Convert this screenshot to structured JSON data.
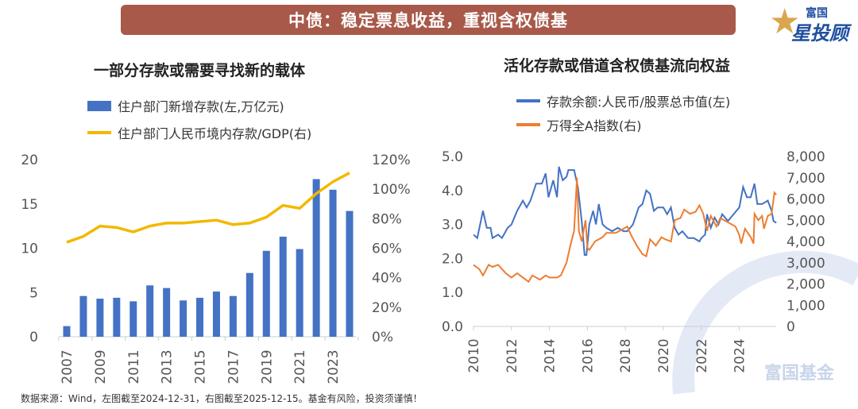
{
  "header": {
    "title": "中债：稳定票息收益，重视含权债基"
  },
  "logo": {
    "top": "富国",
    "bottom": "星投顾"
  },
  "watermark": "富国基金",
  "footer": {
    "source": "数据来源：Wind，左图截至2024-12-31，右图截至2025-12-15。基金有风险，投资须谨慎！"
  },
  "colors": {
    "bar": "#4472c4",
    "gold": "#f2b800",
    "blue": "#4472c4",
    "orange": "#ed7d31",
    "banner": "#a8594a"
  },
  "chart_data": [
    {
      "type": "bar+line",
      "title": "一部分存款或需要寻找新的载体",
      "categories": [
        2007,
        2008,
        2009,
        2010,
        2011,
        2012,
        2013,
        2014,
        2015,
        2016,
        2017,
        2018,
        2019,
        2020,
        2021,
        2022,
        2023,
        2024
      ],
      "x_tick_labels": [
        "2007",
        "2009",
        "2011",
        "2013",
        "2015",
        "2017",
        "2019",
        "2021",
        "2023"
      ],
      "series": [
        {
          "name": "住户部门新增存款(左,万亿元)",
          "type": "bar",
          "axis": "left",
          "values": [
            1.2,
            4.6,
            4.3,
            4.4,
            4.0,
            5.8,
            5.5,
            4.1,
            4.4,
            5.1,
            4.6,
            7.2,
            9.7,
            11.3,
            9.9,
            17.8,
            16.6,
            14.2
          ]
        },
        {
          "name": "住户部门人民币境内存款/GDP(右)",
          "type": "line",
          "axis": "right",
          "values": [
            64,
            68,
            75,
            74,
            71,
            75,
            77,
            77,
            78,
            79,
            76,
            77,
            81,
            89,
            87,
            97,
            105,
            111
          ]
        }
      ],
      "left_axis": {
        "range": [
          0,
          20
        ],
        "ticks": [
          "0",
          "5",
          "10",
          "15",
          "20"
        ]
      },
      "right_axis": {
        "range": [
          0,
          120
        ],
        "ticks": [
          "0%",
          "20%",
          "40%",
          "60%",
          "80%",
          "100%",
          "120%"
        ]
      },
      "legend": "top"
    },
    {
      "type": "line",
      "title": "活化存款或借道含权债基流向权益",
      "series": [
        {
          "name": "存款余额:人民币/股票总市值(左)",
          "axis": "left",
          "points": [
            [
              2010.0,
              2.7
            ],
            [
              2010.2,
              2.6
            ],
            [
              2010.5,
              3.4
            ],
            [
              2010.7,
              2.9
            ],
            [
              2010.9,
              2.9
            ],
            [
              2011.0,
              2.6
            ],
            [
              2011.3,
              2.7
            ],
            [
              2011.5,
              2.6
            ],
            [
              2011.8,
              2.9
            ],
            [
              2012.0,
              3.0
            ],
            [
              2012.3,
              3.4
            ],
            [
              2012.6,
              3.7
            ],
            [
              2012.8,
              3.5
            ],
            [
              2013.0,
              3.7
            ],
            [
              2013.3,
              4.2
            ],
            [
              2013.6,
              4.2
            ],
            [
              2013.8,
              4.5
            ],
            [
              2013.95,
              3.8
            ],
            [
              2014.2,
              4.3
            ],
            [
              2014.4,
              3.8
            ],
            [
              2014.5,
              4.7
            ],
            [
              2014.7,
              4.3
            ],
            [
              2014.9,
              4.4
            ],
            [
              2015.0,
              4.6
            ],
            [
              2015.3,
              4.6
            ],
            [
              2015.5,
              4.1
            ],
            [
              2015.7,
              3.1
            ],
            [
              2015.85,
              2.1
            ],
            [
              2015.95,
              2.1
            ],
            [
              2016.1,
              3.0
            ],
            [
              2016.3,
              3.4
            ],
            [
              2016.45,
              3.0
            ],
            [
              2016.6,
              3.6
            ],
            [
              2016.8,
              3.0
            ],
            [
              2017.0,
              2.9
            ],
            [
              2017.3,
              2.8
            ],
            [
              2017.6,
              2.9
            ],
            [
              2017.9,
              2.8
            ],
            [
              2018.1,
              2.8
            ],
            [
              2018.4,
              3.0
            ],
            [
              2018.7,
              3.5
            ],
            [
              2018.9,
              3.6
            ],
            [
              2019.1,
              4.0
            ],
            [
              2019.3,
              3.9
            ],
            [
              2019.5,
              3.4
            ],
            [
              2019.7,
              3.5
            ],
            [
              2020.0,
              3.5
            ],
            [
              2020.2,
              3.3
            ],
            [
              2020.4,
              3.5
            ],
            [
              2020.6,
              2.9
            ],
            [
              2020.8,
              2.7
            ],
            [
              2021.0,
              2.8
            ],
            [
              2021.3,
              2.6
            ],
            [
              2021.6,
              2.6
            ],
            [
              2021.9,
              2.5
            ],
            [
              2022.0,
              2.6
            ],
            [
              2022.2,
              2.7
            ],
            [
              2022.3,
              3.3
            ],
            [
              2022.5,
              2.9
            ],
            [
              2022.7,
              3.2
            ],
            [
              2022.9,
              3.0
            ],
            [
              2023.1,
              3.3
            ],
            [
              2023.4,
              3.1
            ],
            [
              2023.7,
              3.3
            ],
            [
              2024.0,
              3.5
            ],
            [
              2024.2,
              4.1
            ],
            [
              2024.4,
              3.8
            ],
            [
              2024.6,
              3.8
            ],
            [
              2024.8,
              4.2
            ],
            [
              2024.95,
              3.6
            ],
            [
              2025.2,
              3.6
            ],
            [
              2025.5,
              3.7
            ],
            [
              2025.7,
              3.4
            ],
            [
              2025.8,
              3.1
            ],
            [
              2025.95,
              3.05
            ]
          ]
        },
        {
          "name": "万得全A指数(右)",
          "axis": "right",
          "points": [
            [
              2010.0,
              2900
            ],
            [
              2010.3,
              2700
            ],
            [
              2010.5,
              2400
            ],
            [
              2010.8,
              2900
            ],
            [
              2011.0,
              2800
            ],
            [
              2011.3,
              2900
            ],
            [
              2011.7,
              2500
            ],
            [
              2012.0,
              2300
            ],
            [
              2012.3,
              2500
            ],
            [
              2012.6,
              2300
            ],
            [
              2012.9,
              2100
            ],
            [
              2013.1,
              2400
            ],
            [
              2013.5,
              2200
            ],
            [
              2013.8,
              2400
            ],
            [
              2014.0,
              2300
            ],
            [
              2014.4,
              2300
            ],
            [
              2014.6,
              2400
            ],
            [
              2014.9,
              3000
            ],
            [
              2015.1,
              3800
            ],
            [
              2015.3,
              4500
            ],
            [
              2015.45,
              7000
            ],
            [
              2015.55,
              4500
            ],
            [
              2015.7,
              4000
            ],
            [
              2015.9,
              5000
            ],
            [
              2016.0,
              3700
            ],
            [
              2016.1,
              3600
            ],
            [
              2016.4,
              4000
            ],
            [
              2016.8,
              4200
            ],
            [
              2017.0,
              4400
            ],
            [
              2017.5,
              4400
            ],
            [
              2017.9,
              4600
            ],
            [
              2018.1,
              4700
            ],
            [
              2018.3,
              4300
            ],
            [
              2018.6,
              3800
            ],
            [
              2018.9,
              3400
            ],
            [
              2019.1,
              3300
            ],
            [
              2019.3,
              4100
            ],
            [
              2019.6,
              3800
            ],
            [
              2019.9,
              4200
            ],
            [
              2020.1,
              4100
            ],
            [
              2020.4,
              4000
            ],
            [
              2020.6,
              5000
            ],
            [
              2020.9,
              5100
            ],
            [
              2021.1,
              5500
            ],
            [
              2021.4,
              5300
            ],
            [
              2021.7,
              5400
            ],
            [
              2021.9,
              5700
            ],
            [
              2022.1,
              5300
            ],
            [
              2022.3,
              4500
            ],
            [
              2022.5,
              5200
            ],
            [
              2022.8,
              4700
            ],
            [
              2023.0,
              5100
            ],
            [
              2023.4,
              4900
            ],
            [
              2023.8,
              4700
            ],
            [
              2024.0,
              4300
            ],
            [
              2024.1,
              3900
            ],
            [
              2024.3,
              4600
            ],
            [
              2024.6,
              4200
            ],
            [
              2024.75,
              3900
            ],
            [
              2024.8,
              5300
            ],
            [
              2025.0,
              5000
            ],
            [
              2025.2,
              5200
            ],
            [
              2025.3,
              4600
            ],
            [
              2025.5,
              5200
            ],
            [
              2025.7,
              5300
            ],
            [
              2025.85,
              6300
            ],
            [
              2025.95,
              6200
            ]
          ]
        }
      ],
      "x_tick_labels": [
        "2010",
        "2012",
        "2014",
        "2016",
        "2018",
        "2020",
        "2022",
        "2024"
      ],
      "left_axis": {
        "range": [
          0,
          5
        ],
        "ticks": [
          "0.0",
          "1.0",
          "2.0",
          "3.0",
          "4.0",
          "5.0"
        ]
      },
      "right_axis": {
        "range": [
          0,
          8000
        ],
        "ticks": [
          "0",
          "1,000",
          "2,000",
          "3,000",
          "4,000",
          "5,000",
          "6,000",
          "7,000",
          "8,000"
        ]
      },
      "legend": "top-left"
    }
  ]
}
